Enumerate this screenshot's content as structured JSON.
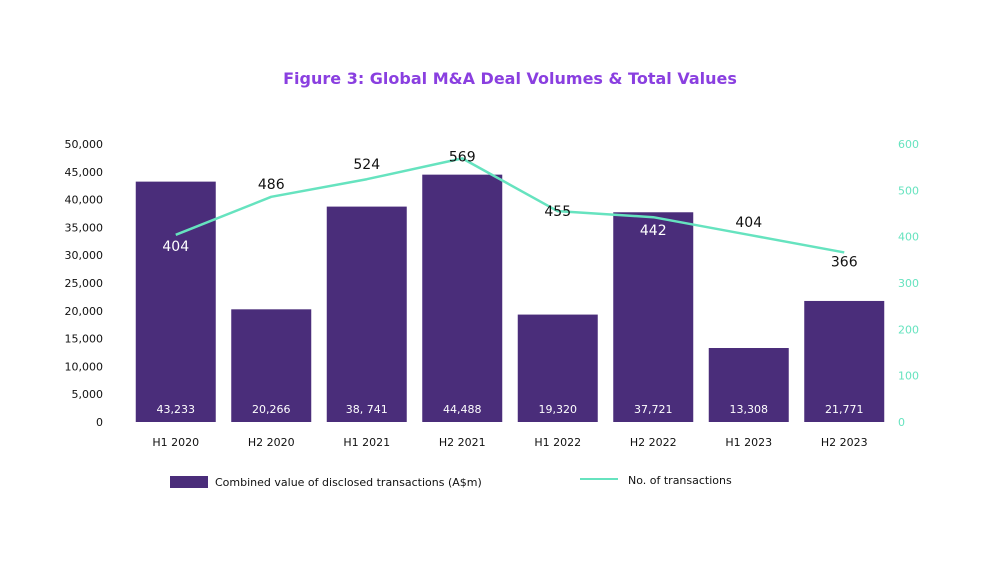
{
  "chart_data": {
    "type": "bar",
    "title": "Figure 3: Global M&A Deal Volumes & Total Values",
    "categories": [
      "H1 2020",
      "H2 2020",
      "H1 2021",
      "H2 2021",
      "H1 2022",
      "H2 2022",
      "H1 2023",
      "H2 2023"
    ],
    "series": [
      {
        "name": "Combined value of disclosed transactions (A$m)",
        "type": "bar",
        "axis": "left",
        "values": [
          43233,
          20266,
          38741,
          44488,
          19320,
          37721,
          13308,
          21771
        ],
        "labels": [
          "43,233",
          "20,266",
          "38, 741",
          "44,488",
          "19,320",
          "37,721",
          "13,308",
          "21,771"
        ]
      },
      {
        "name": "No. of transactions",
        "type": "line",
        "axis": "right",
        "values": [
          404,
          486,
          524,
          569,
          455,
          442,
          404,
          366
        ],
        "labels": [
          "404",
          "486",
          "524",
          "569",
          "455",
          "442",
          "404",
          "366"
        ]
      }
    ],
    "y_left": {
      "range": [
        0,
        50000
      ],
      "ticks": [
        "0",
        "5,000",
        "10,000",
        "15,000",
        "20,000",
        "25,000",
        "30,000",
        "35,000",
        "40,000",
        "45,000",
        "50,000"
      ]
    },
    "y_right": {
      "range": [
        0,
        600
      ],
      "ticks": [
        "0",
        "100",
        "200",
        "300",
        "400",
        "500",
        "600"
      ]
    },
    "legend_position": "bottom",
    "colors": {
      "bar": "#4a2d7a",
      "line": "#66e3bf",
      "title": "#8a3fe0"
    }
  }
}
